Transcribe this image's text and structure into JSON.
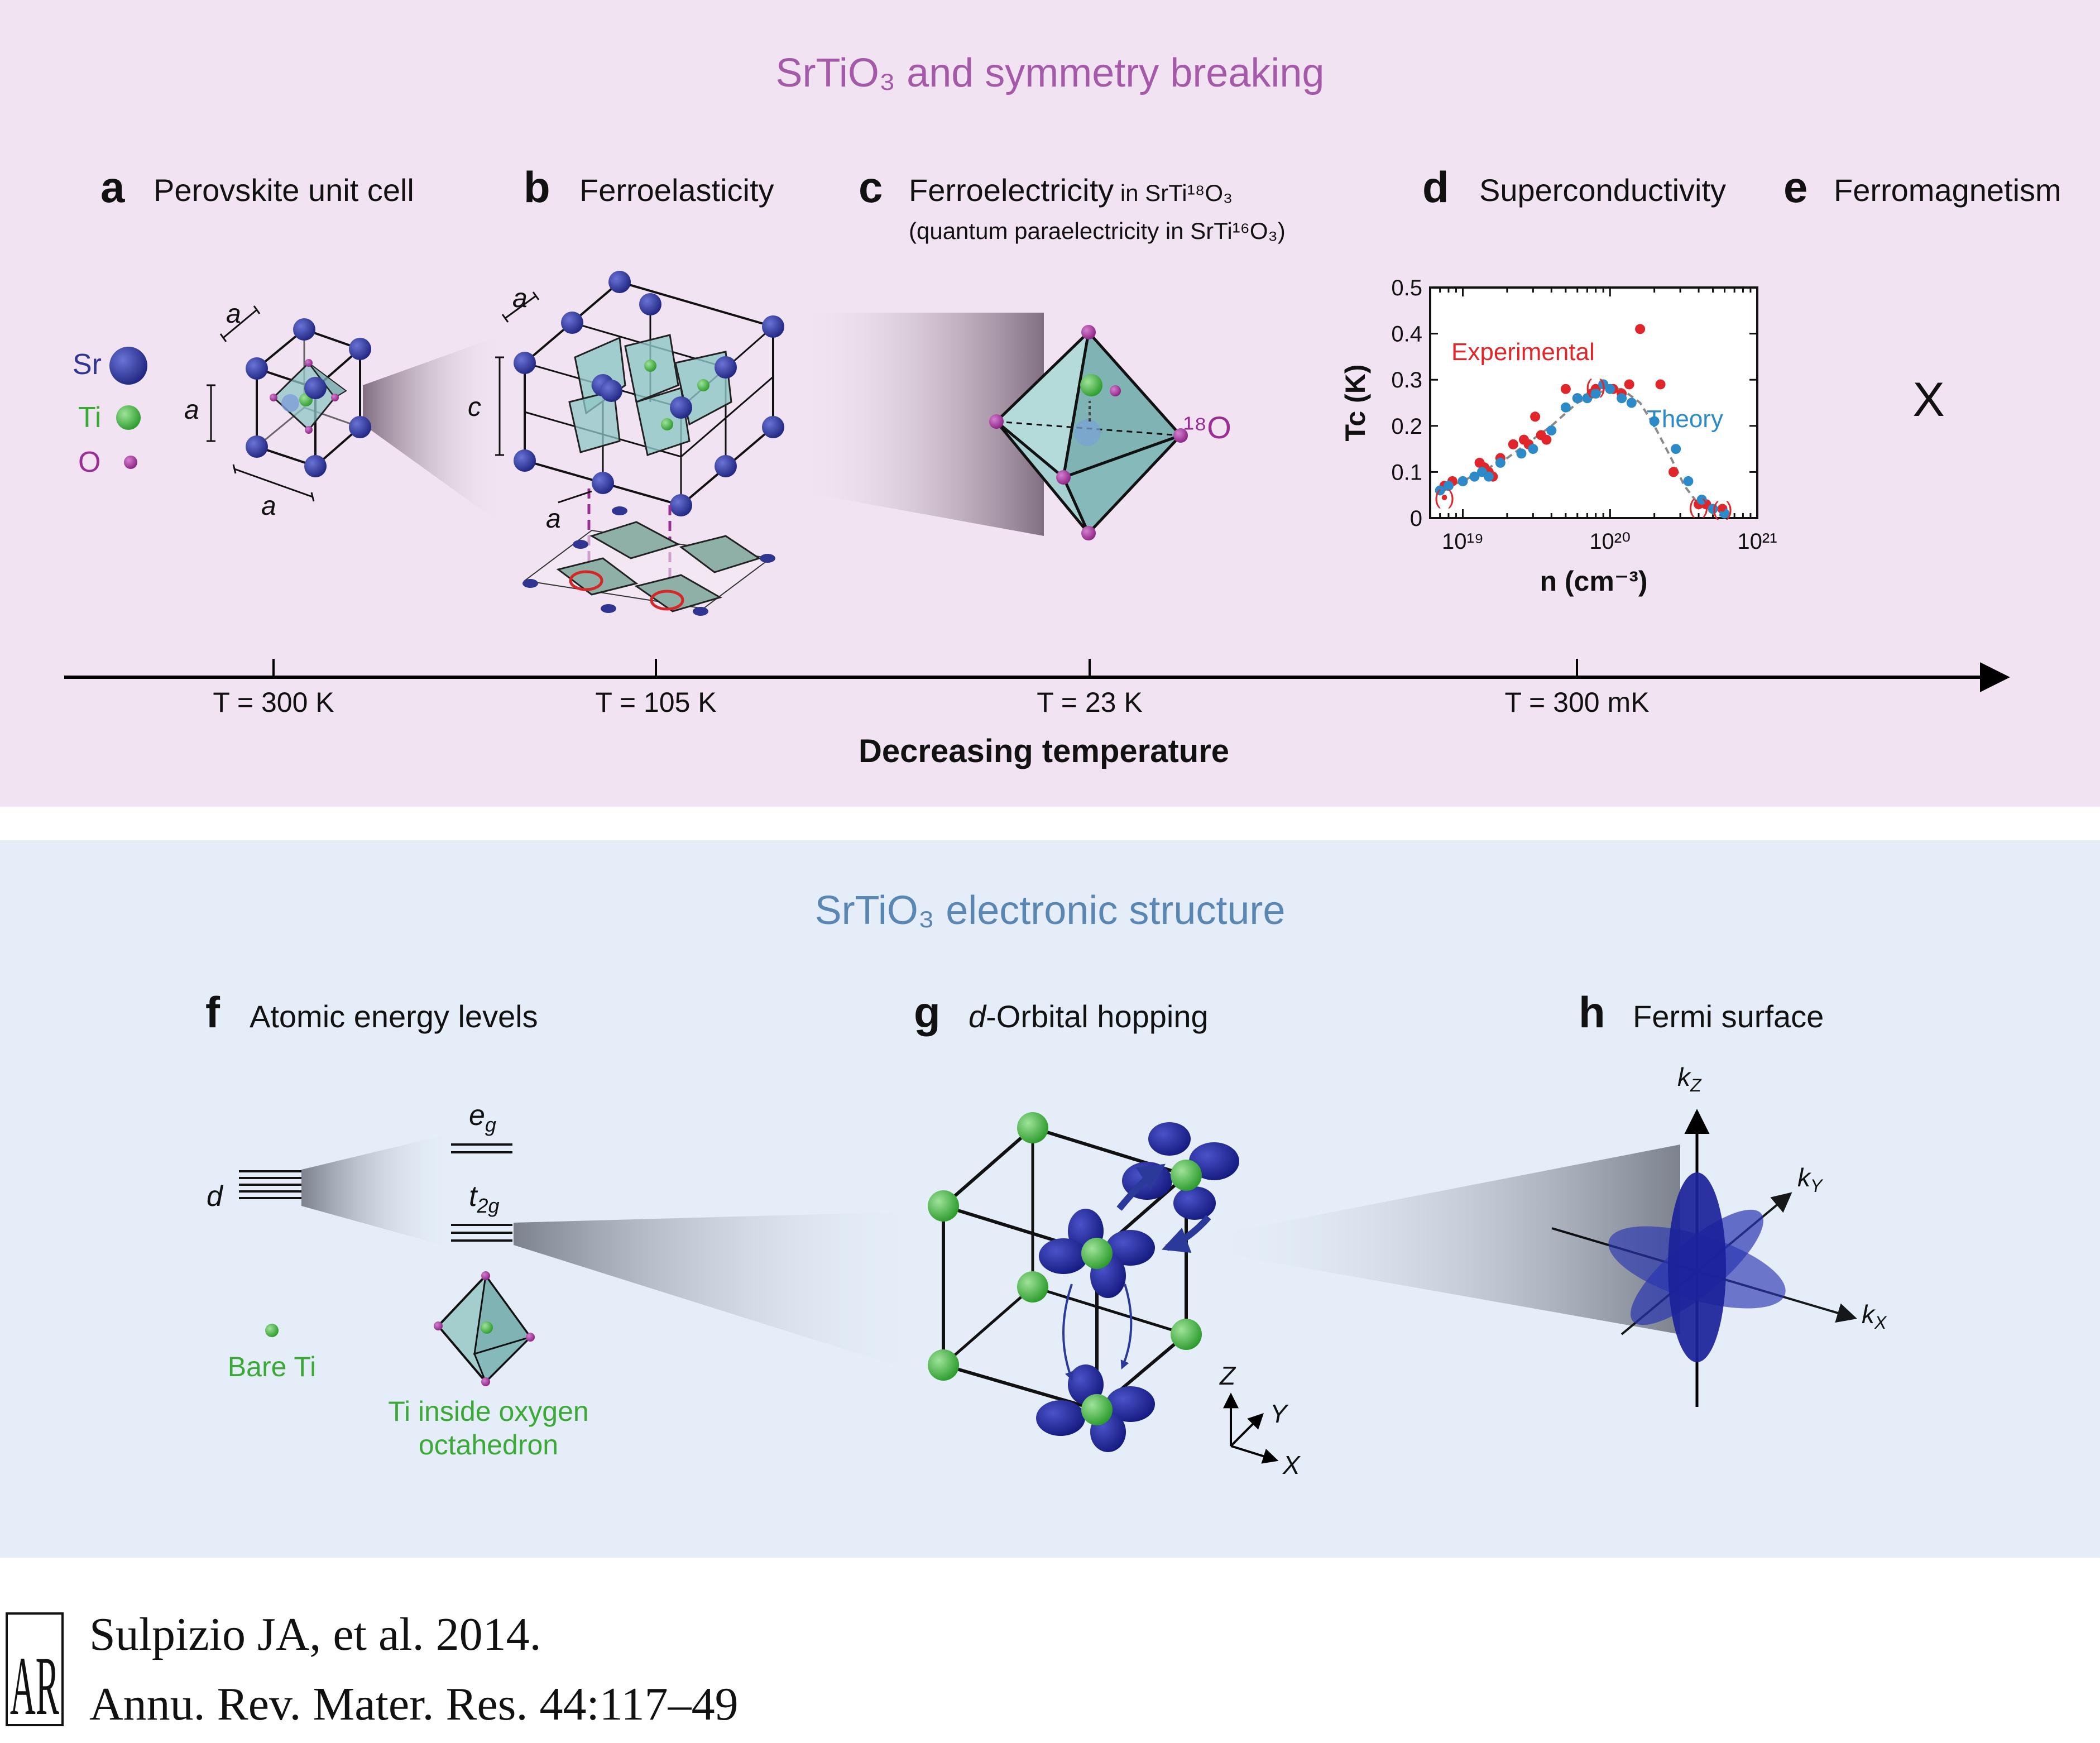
{
  "top_panel": {
    "title": "SrTiO₃ and symmetry breaking",
    "bg_color": "#f1e3f1",
    "title_color": "#a45aa8",
    "sections": [
      {
        "letter": "a",
        "label": "Perovskite unit cell"
      },
      {
        "letter": "b",
        "label": "Ferroelasticity"
      },
      {
        "letter": "c",
        "label": "Ferroelectricity",
        "label_suffix": " in SrTi¹⁸O₃",
        "sublabel": "(quantum paraelectricity in SrTi¹⁶O₃)"
      },
      {
        "letter": "d",
        "label": "Superconductivity"
      },
      {
        "letter": "e",
        "label": "Ferromagnetism"
      }
    ],
    "legend": [
      {
        "symbol": "Sr",
        "color": "#2f3590"
      },
      {
        "symbol": "Ti",
        "color": "#3aa935"
      },
      {
        "symbol": "O",
        "color": "#9b2d94"
      }
    ],
    "lattice_labels": {
      "a": "a",
      "c": "c"
    },
    "o18_label": "¹⁸O",
    "ferromagnetism_mark": "X",
    "timeline": {
      "ticks": [
        "T = 300 K",
        "T = 105 K",
        "T = 23 K",
        "T = 300 mK"
      ],
      "axis_label": "Decreasing temperature"
    }
  },
  "chart_data": {
    "type": "scatter",
    "xlabel": "n (cm⁻³)",
    "ylabel": "Tc (K)",
    "x_scale": "log",
    "xlim": [
      6e+18,
      1e+21
    ],
    "ylim": [
      0,
      0.5
    ],
    "x_tick_labels": [
      "10¹⁹",
      "10²⁰",
      "10²¹"
    ],
    "y_tick_labels": [
      "0",
      "0.1",
      "0.2",
      "0.3",
      "0.4",
      "0.5"
    ],
    "x_ticks": [
      1e+19,
      1e+20,
      1e+21
    ],
    "y_ticks": [
      0,
      0.1,
      0.2,
      0.3,
      0.4,
      0.5
    ],
    "series": [
      {
        "name": "Experimental",
        "color": "#e0262a",
        "x": [
          7.5e+18,
          8.5e+18,
          1e+19,
          1.3e+19,
          1.4e+19,
          1.5e+19,
          1.6e+19,
          1.8e+19,
          2.2e+19,
          2.6e+19,
          2.8e+19,
          3.1e+19,
          3.4e+19,
          3.7e+19,
          5e+19,
          6e+19,
          7.5e+19,
          8e+19,
          9e+19,
          1.05e+20,
          1.2e+20,
          1.35e+20,
          1.6e+20,
          2.2e+20,
          2.7e+20,
          4e+20,
          4.5e+20,
          5.8e+20
        ],
        "y": [
          0.07,
          0.08,
          0.08,
          0.12,
          0.11,
          0.1,
          0.09,
          0.13,
          0.16,
          0.17,
          0.16,
          0.22,
          0.18,
          0.17,
          0.28,
          0.26,
          0.27,
          0.28,
          0.29,
          0.28,
          0.27,
          0.29,
          0.41,
          0.29,
          0.1,
          0.03,
          0.03,
          0.02
        ]
      },
      {
        "name": "Theory",
        "color": "#2b8ac7",
        "x": [
          7e+18,
          8e+18,
          1e+19,
          1.2e+19,
          1.35e+19,
          1.5e+19,
          1.8e+19,
          2.5e+19,
          3e+19,
          4e+19,
          5e+19,
          6e+19,
          7e+19,
          8e+19,
          9e+19,
          1e+20,
          1.2e+20,
          1.4e+20,
          2e+20,
          2.8e+20,
          3.4e+20,
          4.2e+20,
          5e+20,
          6e+20
        ],
        "y": [
          0.06,
          0.07,
          0.08,
          0.09,
          0.1,
          0.09,
          0.12,
          0.14,
          0.15,
          0.19,
          0.24,
          0.26,
          0.26,
          0.27,
          0.29,
          0.28,
          0.26,
          0.25,
          0.21,
          0.15,
          0.08,
          0.04,
          0.02,
          0.01
        ]
      }
    ],
    "fit_line": {
      "name": "",
      "color": "#8a8a8a",
      "x": [
        6.5e+18,
        1e+19,
        2e+19,
        4e+19,
        6e+19,
        8e+19,
        1e+20,
        1.2e+20,
        1.6e+20,
        2e+20,
        2.6e+20,
        3.2e+20,
        4e+20,
        5e+20,
        6.5e+20
      ],
      "y": [
        0.06,
        0.08,
        0.13,
        0.2,
        0.25,
        0.27,
        0.28,
        0.28,
        0.25,
        0.2,
        0.13,
        0.07,
        0.03,
        0.01,
        0.0
      ]
    },
    "annotations": [
      "(•)"
    ]
  },
  "bottom_panel": {
    "title": "SrTiO₃ electronic structure",
    "bg_color": "#e4edf8",
    "title_color": "#5a86b4",
    "sections": [
      {
        "letter": "f",
        "label": "Atomic energy levels"
      },
      {
        "letter": "g",
        "label": "-Orbital hopping",
        "label_prefix": "d"
      },
      {
        "letter": "h",
        "label": "Fermi surface"
      }
    ],
    "levels": {
      "d": "d",
      "eg": "e",
      "eg_sub": "g",
      "t2g": "t",
      "t2g_sub": "2g"
    },
    "bare_ti": "Bare Ti",
    "ti_octahedron": [
      "Ti inside oxygen",
      "octahedron"
    ],
    "axes": {
      "z": "Z",
      "y": "Y",
      "x": "X"
    },
    "k_axes": {
      "k": "k",
      "kz": "Z",
      "ky": "Y",
      "kx": "X"
    }
  },
  "citation": {
    "logo": "AR",
    "line1": "Sulpizio JA, et al. 2014.",
    "line2": "Annu. Rev. Mater. Res. 44:117–49"
  }
}
